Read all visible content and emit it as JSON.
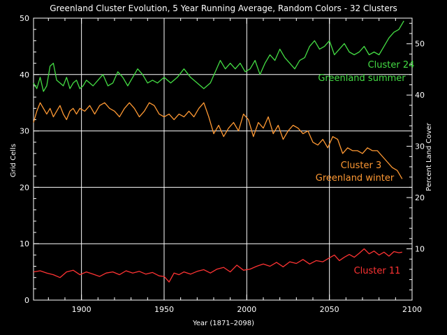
{
  "chart_data": {
    "type": "line",
    "title": "Greenland Cluster Evolution, 5 Year Running Average, Random Colors - 32 Clusters",
    "xlabel": "Year (1871–2098)",
    "ylabel_left": "Grid Cells",
    "ylabel_right": "Percent Land Cover",
    "xlim": [
      1871,
      2100
    ],
    "ylim_left": [
      0,
      50
    ],
    "ylim_right": [
      0,
      55
    ],
    "x_ticks": [
      1900,
      1950,
      2000,
      2050,
      2100
    ],
    "x_tick_labels": [
      "1900",
      "1950",
      "2000",
      "2050",
      "2100"
    ],
    "y_ticks_left": [
      0,
      10,
      20,
      30,
      40,
      50
    ],
    "y_tick_labels_left": [
      "0",
      "10",
      "20",
      "30",
      "40",
      "50"
    ],
    "y_ticks_right": [
      10,
      20,
      30,
      40,
      50
    ],
    "y_tick_labels_right": [
      "10",
      "20",
      "30",
      "40",
      "50"
    ],
    "grid": true,
    "series": [
      {
        "name": "Cluster 24",
        "color": "#44dd44",
        "x": [
          1871,
          1873,
          1875,
          1877,
          1879,
          1881,
          1883,
          1885,
          1887,
          1889,
          1891,
          1893,
          1895,
          1897,
          1899,
          1901,
          1903,
          1905,
          1907,
          1910,
          1913,
          1916,
          1919,
          1922,
          1925,
          1928,
          1931,
          1934,
          1937,
          1940,
          1943,
          1946,
          1950,
          1954,
          1958,
          1962,
          1966,
          1970,
          1974,
          1978,
          1981,
          1984,
          1987,
          1990,
          1993,
          1996,
          1999,
          2002,
          2005,
          2008,
          2011,
          2014,
          2017,
          2020,
          2023,
          2026,
          2029,
          2032,
          2035,
          2038,
          2041,
          2044,
          2047,
          2050,
          2053,
          2056,
          2059,
          2062,
          2065,
          2068,
          2071,
          2074,
          2077,
          2080,
          2083,
          2086,
          2089,
          2092,
          2095
        ],
        "values": [
          38.5,
          37.5,
          39.5,
          37.0,
          38.0,
          41.5,
          42.0,
          39.0,
          38.5,
          38.0,
          39.5,
          37.5,
          38.5,
          39.0,
          37.5,
          38.0,
          39.0,
          38.5,
          38.0,
          39.0,
          40.0,
          38.0,
          38.5,
          40.5,
          39.5,
          38.0,
          39.5,
          41.0,
          40.0,
          38.5,
          39.0,
          38.5,
          39.5,
          38.5,
          39.5,
          41.0,
          39.5,
          38.5,
          37.5,
          38.5,
          40.5,
          42.5,
          41.0,
          42.0,
          41.0,
          42.0,
          40.5,
          41.0,
          42.5,
          40.0,
          42.0,
          43.5,
          42.5,
          44.5,
          43.0,
          42.0,
          41.0,
          42.5,
          43.0,
          45.0,
          46.0,
          44.5,
          45.0,
          46.0,
          43.5,
          44.5,
          45.5,
          44.0,
          43.5,
          44.0,
          45.0,
          43.5,
          44.0,
          43.5,
          45.0,
          46.5,
          47.5,
          48.0,
          49.5
        ]
      },
      {
        "name": "Cluster 3",
        "color": "#ff9933",
        "x": [
          1871,
          1873,
          1875,
          1877,
          1879,
          1881,
          1883,
          1885,
          1887,
          1889,
          1891,
          1893,
          1895,
          1897,
          1899,
          1902,
          1905,
          1908,
          1911,
          1914,
          1917,
          1920,
          1923,
          1926,
          1929,
          1932,
          1935,
          1938,
          1941,
          1944,
          1947,
          1950,
          1953,
          1956,
          1959,
          1962,
          1965,
          1968,
          1971,
          1974,
          1977,
          1980,
          1983,
          1986,
          1989,
          1992,
          1995,
          1998,
          2001,
          2004,
          2007,
          2010,
          2013,
          2016,
          2019,
          2022,
          2025,
          2028,
          2031,
          2034,
          2037,
          2040,
          2043,
          2046,
          2049,
          2052,
          2055,
          2058,
          2061,
          2064,
          2067,
          2070,
          2073,
          2076,
          2079,
          2082,
          2085,
          2088,
          2091,
          2094
        ],
        "values": [
          31.5,
          33.5,
          35.0,
          34.0,
          33.0,
          34.0,
          32.5,
          33.5,
          34.5,
          33.0,
          32.0,
          33.5,
          34.0,
          33.0,
          34.0,
          33.5,
          34.5,
          33.0,
          34.5,
          35.0,
          34.0,
          33.5,
          32.5,
          34.0,
          35.0,
          34.0,
          32.5,
          33.5,
          35.0,
          34.5,
          33.0,
          32.5,
          33.0,
          32.0,
          33.0,
          32.5,
          33.5,
          32.5,
          34.0,
          35.0,
          32.5,
          29.5,
          31.0,
          29.0,
          30.5,
          31.5,
          30.0,
          33.0,
          32.0,
          29.0,
          31.5,
          30.5,
          32.5,
          29.5,
          31.0,
          28.5,
          30.0,
          31.0,
          30.5,
          29.5,
          30.0,
          28.0,
          27.5,
          28.5,
          27.0,
          29.0,
          28.5,
          26.0,
          27.0,
          26.5,
          26.5,
          26.0,
          27.0,
          26.5,
          26.5,
          25.5,
          24.5,
          23.5,
          23.0,
          21.5
        ]
      },
      {
        "name": "Cluster 11",
        "color": "#ff3333",
        "x": [
          1871,
          1875,
          1879,
          1883,
          1887,
          1891,
          1895,
          1899,
          1903,
          1907,
          1911,
          1915,
          1919,
          1923,
          1927,
          1931,
          1935,
          1939,
          1943,
          1947,
          1950,
          1953,
          1956,
          1959,
          1962,
          1966,
          1970,
          1974,
          1978,
          1982,
          1986,
          1990,
          1994,
          1998,
          2002,
          2006,
          2010,
          2014,
          2018,
          2022,
          2026,
          2030,
          2034,
          2038,
          2042,
          2046,
          2050,
          2053,
          2056,
          2059,
          2062,
          2065,
          2068,
          2071,
          2074,
          2077,
          2080,
          2083,
          2086,
          2089,
          2092,
          2094
        ],
        "values": [
          5.0,
          5.2,
          4.8,
          4.5,
          4.0,
          5.0,
          5.3,
          4.5,
          5.0,
          4.6,
          4.2,
          4.8,
          5.0,
          4.5,
          5.2,
          4.8,
          5.1,
          4.6,
          4.9,
          4.3,
          4.2,
          3.2,
          4.8,
          4.5,
          5.0,
          4.6,
          5.1,
          5.4,
          4.8,
          5.5,
          5.8,
          5.0,
          6.2,
          5.3,
          5.5,
          6.0,
          6.4,
          6.0,
          6.7,
          5.9,
          6.8,
          6.5,
          7.2,
          6.4,
          7.0,
          6.8,
          7.5,
          8.0,
          7.0,
          7.6,
          8.1,
          7.6,
          8.3,
          9.1,
          8.2,
          8.7,
          8.0,
          8.5,
          7.8,
          8.6,
          8.4,
          8.5
        ]
      }
    ],
    "annotations": [
      {
        "text": "Cluster 24",
        "series": 0
      },
      {
        "text": "Greenland summer",
        "series": 0
      },
      {
        "text": "Cluster 3",
        "series": 1
      },
      {
        "text": "Greenland winter",
        "series": 1
      },
      {
        "text": "Cluster 11",
        "series": 2
      }
    ]
  }
}
